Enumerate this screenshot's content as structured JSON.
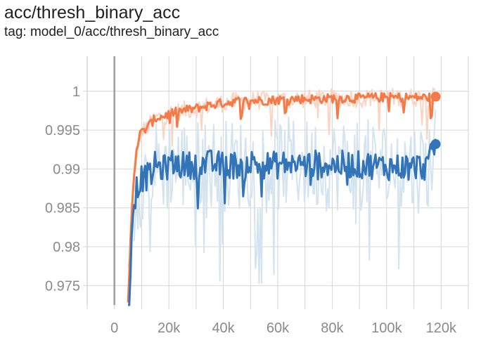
{
  "header": {
    "title": "acc/thresh_binary_acc",
    "tag": "tag: model_0/acc/thresh_binary_acc"
  },
  "colors": {
    "orange": "#f47a47",
    "orange_raw": "#fbd3c0",
    "blue": "#3274b8",
    "blue_raw": "#d3e3ef",
    "grid": "#d6d6d6",
    "axis": "#9e9e9e"
  },
  "chart_data": {
    "type": "line",
    "title": "acc/thresh_binary_acc",
    "xlabel": "",
    "ylabel": "",
    "xlim": [
      -10000,
      130000
    ],
    "ylim": [
      0.9725,
      1.0045
    ],
    "grid": true,
    "x_ticks": [
      0,
      20000,
      40000,
      60000,
      80000,
      100000,
      120000
    ],
    "x_tick_labels": [
      "0",
      "20k",
      "40k",
      "60k",
      "80k",
      "100k",
      "120k"
    ],
    "y_ticks": [
      0.975,
      0.98,
      0.985,
      0.99,
      0.995,
      1
    ],
    "y_tick_labels": [
      "0.975",
      "0.98",
      "0.985",
      "0.99",
      "0.995",
      "1"
    ],
    "series": [
      {
        "color": "orange",
        "x": [
          5000,
          6500,
          8000,
          9500,
          11000,
          13000,
          15000,
          18000,
          21000,
          25000,
          30000,
          35000,
          40000,
          45000,
          50000,
          55000,
          60000,
          65000,
          70000,
          75000,
          80000,
          85000,
          90000,
          95000,
          100000,
          105000,
          110000,
          115000,
          118000
        ],
        "y": [
          0.9725,
          0.986,
          0.9925,
          0.9945,
          0.995,
          0.9957,
          0.9965,
          0.9968,
          0.9972,
          0.9975,
          0.9978,
          0.9982,
          0.9985,
          0.9987,
          0.9988,
          0.9988,
          0.9989,
          0.999,
          0.999,
          0.999,
          0.9991,
          0.9991,
          0.9991,
          0.9992,
          0.9992,
          0.9992,
          0.9992,
          0.9992,
          0.9993
        ]
      },
      {
        "color": "blue",
        "x": [
          5000,
          6500,
          8000,
          9500,
          11000,
          13000,
          15000,
          18000,
          21000,
          25000,
          30000,
          35000,
          40000,
          45000,
          50000,
          55000,
          60000,
          65000,
          70000,
          75000,
          80000,
          85000,
          90000,
          95000,
          100000,
          105000,
          110000,
          115000,
          118000
        ],
        "y": [
          0.9725,
          0.9835,
          0.9875,
          0.9885,
          0.989,
          0.989,
          0.9905,
          0.99,
          0.9908,
          0.9905,
          0.9905,
          0.9907,
          0.9905,
          0.9905,
          0.9908,
          0.9905,
          0.9905,
          0.9908,
          0.9905,
          0.9907,
          0.9905,
          0.9906,
          0.9905,
          0.9905,
          0.9903,
          0.9903,
          0.9903,
          0.9903,
          0.9932
        ]
      }
    ]
  }
}
